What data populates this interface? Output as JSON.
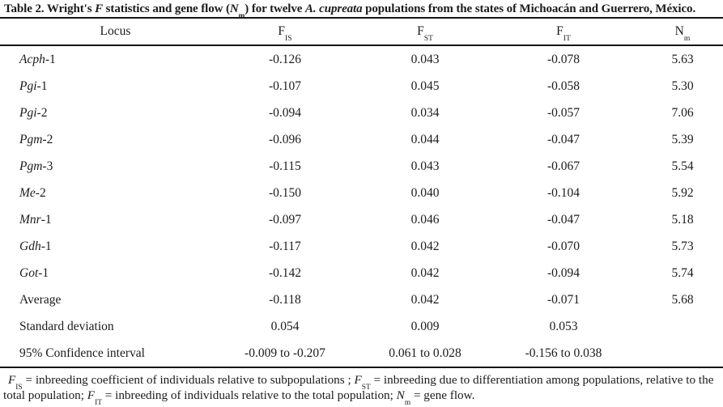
{
  "title": {
    "prefix": "Table 2. Wright's ",
    "f": "F",
    "mid1": " statistics and gene flow (",
    "n": "N",
    "n_sub": "m",
    "mid2": ") for twelve ",
    "species": "A. cupreata",
    "suffix": " populations from the states of  Michoacán and Guerrero, México."
  },
  "table": {
    "columns": [
      {
        "label": "Locus"
      },
      {
        "main": "F",
        "sub": "IS"
      },
      {
        "main": "F",
        "sub": "ST"
      },
      {
        "main": "F",
        "sub": "IT"
      },
      {
        "main": "N",
        "sub": "m"
      }
    ],
    "rows": [
      {
        "locus": "Acph",
        "locus_suffix": "-1",
        "italic": true,
        "fis": "-0.126",
        "fst": "0.043",
        "fit": "-0.078",
        "nm": "5.63"
      },
      {
        "locus": "Pgi",
        "locus_suffix": "-1",
        "italic": true,
        "fis": "-0.107",
        "fst": "0.045",
        "fit": "-0.058",
        "nm": "5.30"
      },
      {
        "locus": "Pgi",
        "locus_suffix": "-2",
        "italic": true,
        "fis": "-0.094",
        "fst": "0.034",
        "fit": "-0.057",
        "nm": "7.06"
      },
      {
        "locus": "Pgm",
        "locus_suffix": "-2",
        "italic": true,
        "fis": "-0.096",
        "fst": "0.044",
        "fit": "-0.047",
        "nm": "5.39"
      },
      {
        "locus": "Pgm",
        "locus_suffix": "-3",
        "italic": true,
        "fis": "-0.115",
        "fst": "0.043",
        "fit": "-0.067",
        "nm": "5.54"
      },
      {
        "locus": "Me",
        "locus_suffix": "-2",
        "italic": true,
        "fis": "-0.150",
        "fst": "0.040",
        "fit": "-0.104",
        "nm": "5.92"
      },
      {
        "locus": "Mnr",
        "locus_suffix": "-1",
        "italic": true,
        "fis": "-0.097",
        "fst": "0.046",
        "fit": "-0.047",
        "nm": "5.18"
      },
      {
        "locus": "Gdh",
        "locus_suffix": "-1",
        "italic": true,
        "fis": "-0.117",
        "fst": "0.042",
        "fit": "-0.070",
        "nm": "5.73"
      },
      {
        "locus": "Got",
        "locus_suffix": "-1",
        "italic": true,
        "fis": "-0.142",
        "fst": "0.042",
        "fit": "-0.094",
        "nm": "5.74"
      },
      {
        "locus": "Average",
        "locus_suffix": "",
        "italic": false,
        "fis": "-0.118",
        "fst": "0.042",
        "fit": "-0.071",
        "nm": "5.68"
      },
      {
        "locus": "Standard deviation",
        "locus_suffix": "",
        "italic": false,
        "fis": "0.054",
        "fst": "0.009",
        "fit": "0.053",
        "nm": ""
      },
      {
        "locus": "95% Confidence interval",
        "locus_suffix": "",
        "italic": false,
        "fis": "-0.009 to -0.207",
        "fst": "0.061 to 0.028",
        "fit": "-0.156 to 0.038",
        "nm": ""
      }
    ]
  },
  "footnote": {
    "segments": [
      {
        "t": "F",
        "s": "i"
      },
      {
        "t": "IS",
        "s": "sub"
      },
      {
        "t": " = inbreeding coefficient of individuals relative to subpopulations ; ",
        "s": ""
      },
      {
        "t": "F",
        "s": "i"
      },
      {
        "t": "ST",
        "s": "sub"
      },
      {
        "t": " = inbreeding due to differentiation among populations, relative to the total population; ",
        "s": ""
      },
      {
        "t": "F",
        "s": "i"
      },
      {
        "t": "IT",
        "s": "sub"
      },
      {
        "t": " = inbreeding of individuals relative to the total population; ",
        "s": ""
      },
      {
        "t": "N",
        "s": "i"
      },
      {
        "t": "m",
        "s": "sub"
      },
      {
        "t": " = gene flow.",
        "s": ""
      }
    ]
  },
  "colors": {
    "text": "#1b1b1b",
    "rule": "#141414",
    "background": "#ffffff"
  }
}
